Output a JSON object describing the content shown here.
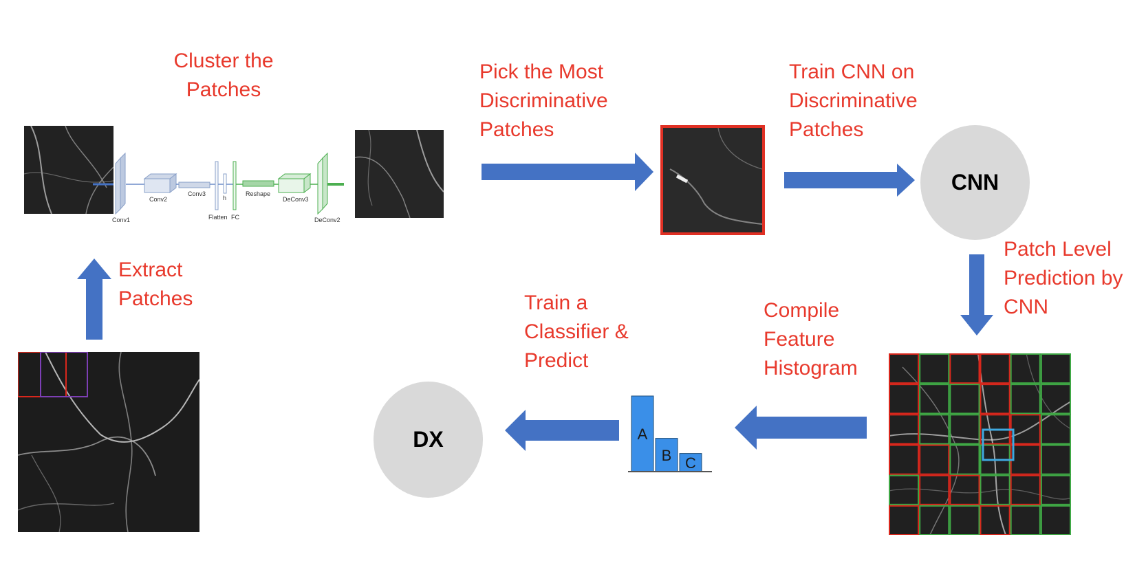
{
  "steps": {
    "cluster": [
      "Cluster the",
      "Patches"
    ],
    "pick": [
      "Pick the Most",
      "Discriminative",
      "Patches"
    ],
    "train_cnn": [
      "Train CNN on",
      "Discriminative",
      "Patches"
    ],
    "patch_level": [
      "Patch Level",
      "Prediction by",
      "CNN"
    ],
    "compile": [
      "Compile",
      "Feature",
      "Histogram"
    ],
    "train_classifier": [
      "Train a",
      "Classifier &",
      "Predict"
    ],
    "extract": [
      "Extract",
      "Patches"
    ]
  },
  "nodes": {
    "cnn": "CNN",
    "dx": "DX"
  },
  "autoencoder_layers": [
    "Conv1",
    "Conv2",
    "Conv3",
    "Flatten",
    "h",
    "FC",
    "Reshape",
    "DeConv3",
    "DeConv2"
  ],
  "histogram": {
    "categories": [
      "A",
      "B",
      "C"
    ],
    "values": [
      100,
      44,
      24
    ]
  },
  "colors": {
    "label": "#e8392c",
    "arrow": "#4472c4",
    "node": "#d9d9d9",
    "bar": "#3a8fe8",
    "grid_red": "#d9271c",
    "grid_green": "#3fa845",
    "highlight_blue": "#3fa9e0",
    "highlight_purple": "#7d3fb5"
  }
}
